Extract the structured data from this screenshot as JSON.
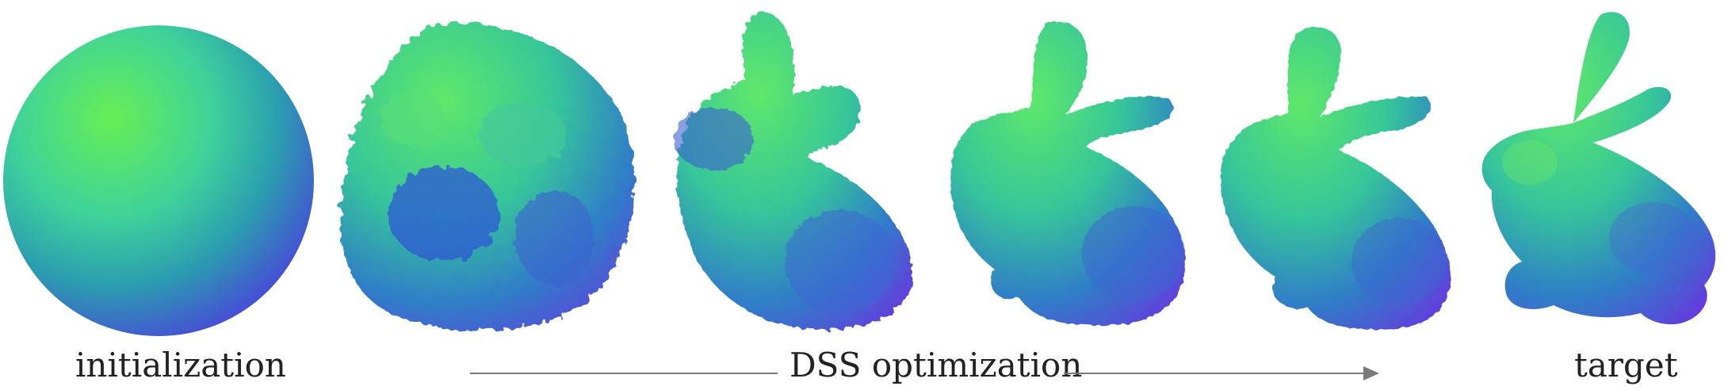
{
  "captions": {
    "left": "initialization",
    "middle": "DSS optimization",
    "right": "target"
  },
  "stages": [
    {
      "name": "sphere",
      "noise": 0.0
    },
    {
      "name": "blob",
      "noise": 1.0
    },
    {
      "name": "early-bunny",
      "noise": 0.8
    },
    {
      "name": "mid-bunny",
      "noise": 0.55
    },
    {
      "name": "late-bunny",
      "noise": 0.3
    },
    {
      "name": "target-bunny",
      "noise": 0.0
    }
  ],
  "colors": {
    "green": "#4fe07a",
    "teal": "#2aa7a0",
    "blue": "#3b57d8",
    "purple": "#7a2ee0",
    "arrow": "#7a7a7a",
    "text": "#222222"
  }
}
